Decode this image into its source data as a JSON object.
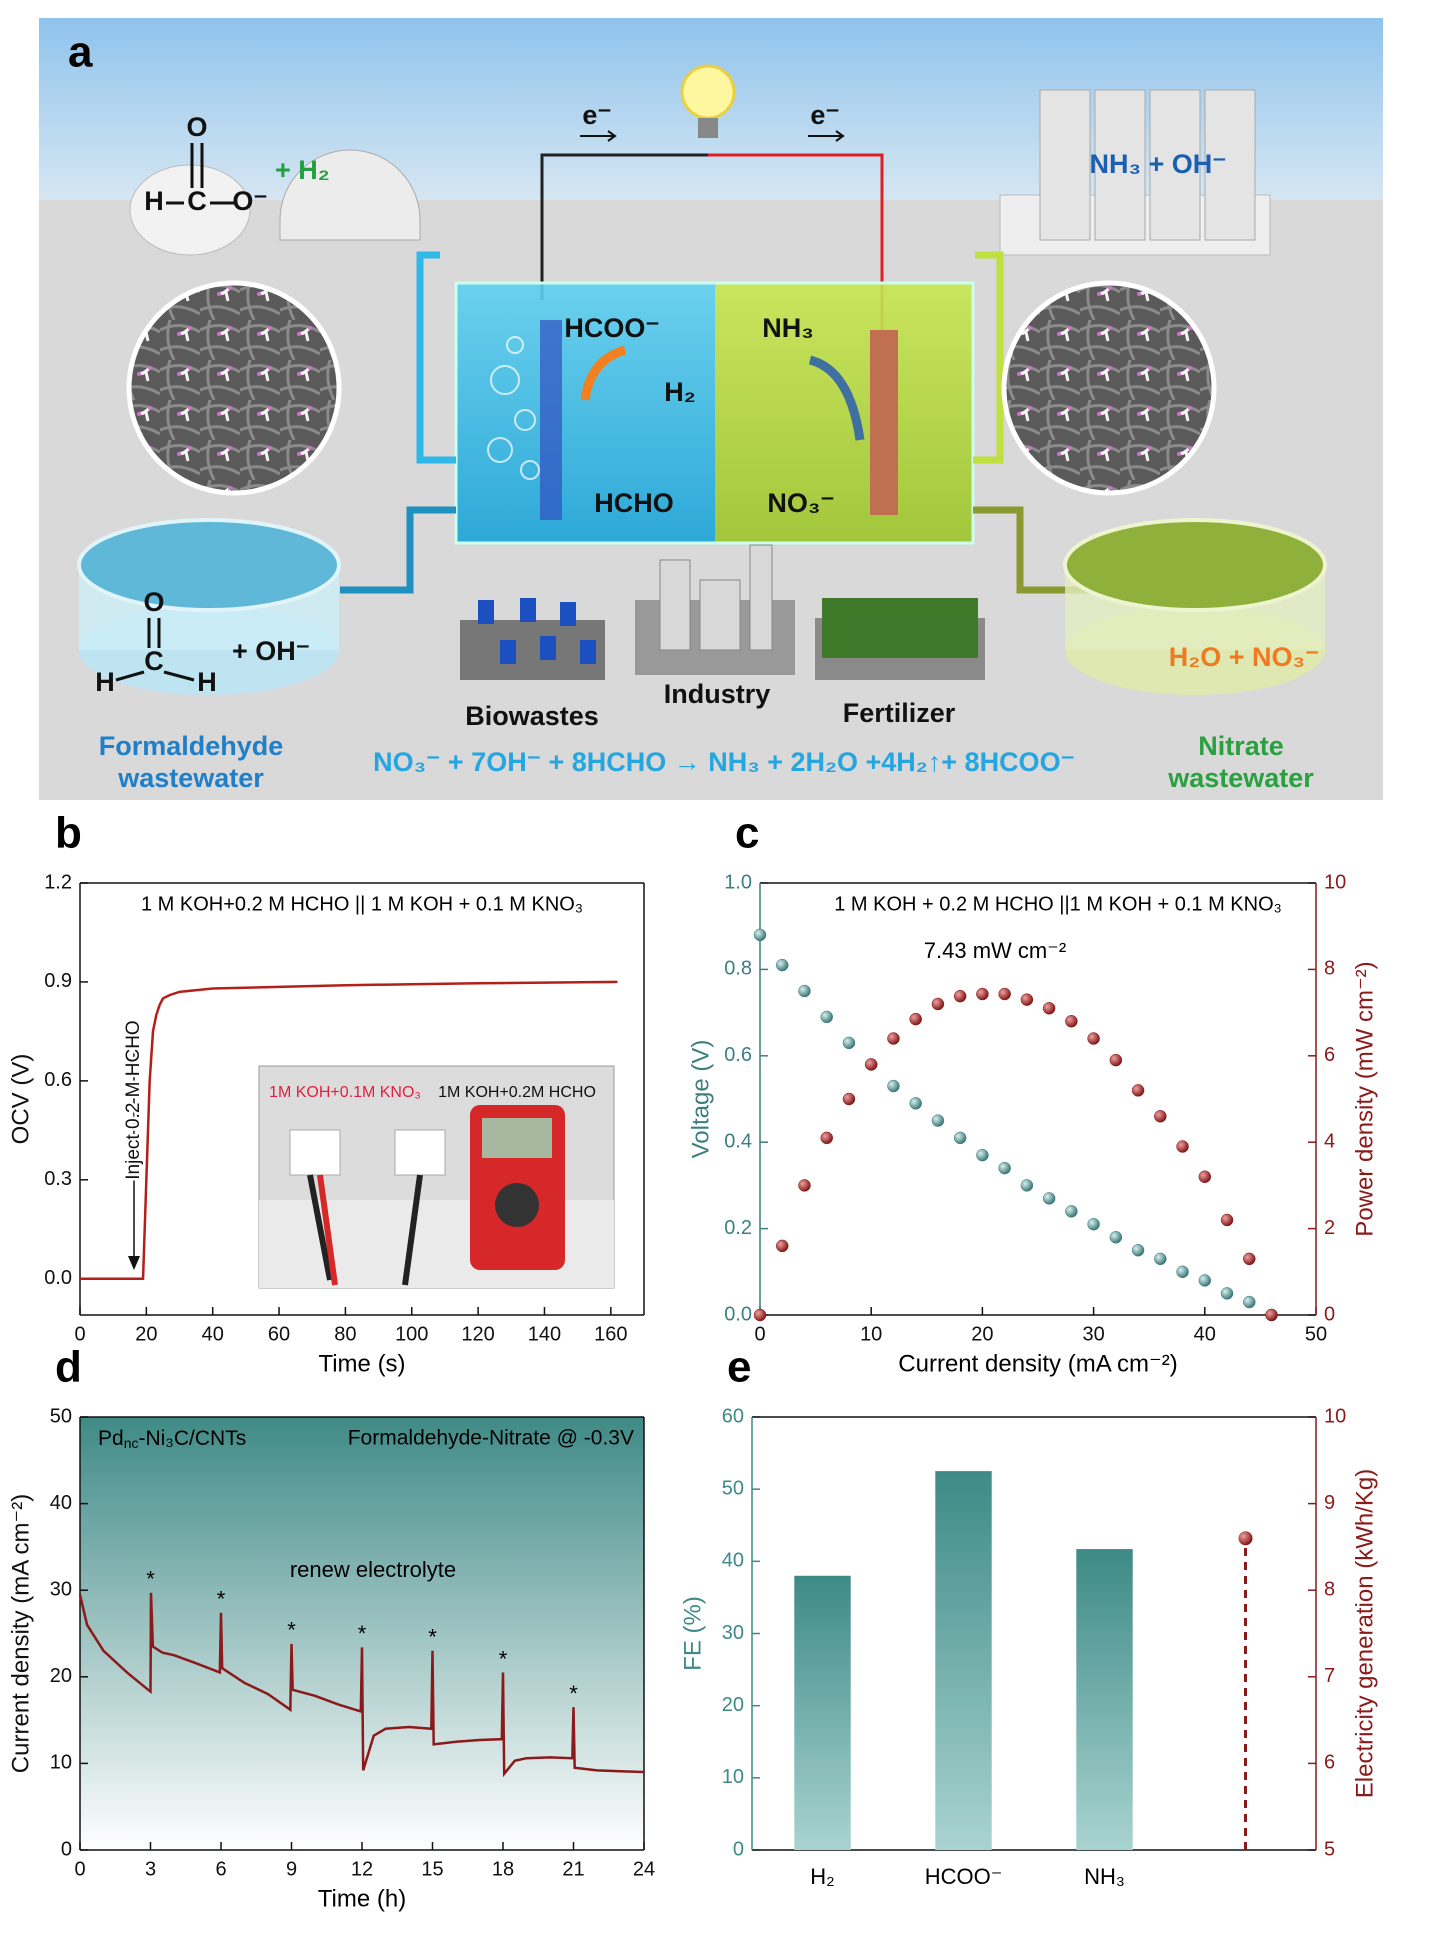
{
  "panel_a": {
    "label": "a",
    "electrons": [
      "e⁻",
      "e⁻"
    ],
    "formate_atoms": [
      "O",
      "H",
      "C",
      "O⁻"
    ],
    "hydrogen": "+ H₂",
    "ammonia_product": "NH₃ + OH⁻",
    "anode_species": [
      "HCOO⁻",
      "H₂",
      "HCHO"
    ],
    "cathode_species": [
      "NH₃",
      "NO₃⁻"
    ],
    "formaldehyde_atoms": [
      "O",
      "C",
      "H",
      "H"
    ],
    "hydroxide": "+ OH⁻",
    "nitrate_feed": "H₂O + NO₃⁻",
    "sources": [
      "Biowastes",
      "Industry",
      "Fertilizer"
    ],
    "left_tank": [
      "Formaldehyde",
      "wastewater"
    ],
    "right_tank": [
      "Nitrate",
      "wastewater"
    ],
    "equation": "NO₃⁻ + 7OH⁻ + 8HCHO → NH₃ + 2H₂O +4H₂↑+ 8HCOO⁻"
  },
  "chart_data": [
    {
      "type": "line",
      "label": "b",
      "subtitle": "1 M KOH+0.2 M HCHO || 1 M KOH + 0.1 M KNO₃",
      "x_label": "Time (s)",
      "y_label": "OCV (V)",
      "annotation": "Inject 0.2 M HCHO",
      "inset_labels": [
        "1M KOH+0.1M KNO₃",
        "1M KOH+0.2M HCHO"
      ],
      "x": [
        0,
        10,
        19,
        20,
        21,
        22,
        23,
        24,
        25,
        27,
        30,
        40,
        60,
        80,
        100,
        120,
        140,
        162
      ],
      "values": [
        0,
        0,
        0,
        0.3,
        0.6,
        0.75,
        0.8,
        0.83,
        0.85,
        0.86,
        0.87,
        0.88,
        0.885,
        0.89,
        0.893,
        0.896,
        0.898,
        0.9
      ],
      "color": "#b3201a",
      "xlim": [
        0,
        170
      ],
      "ylim": [
        -0.11,
        1.2
      ],
      "xticks": [
        0,
        20,
        40,
        60,
        80,
        100,
        120,
        140,
        160
      ],
      "yticks": [
        {
          "value": 0,
          "label": "0.0"
        },
        0.3,
        0.6,
        0.9,
        1.2
      ]
    },
    {
      "type": "scatter",
      "label": "c",
      "subtitle": "1 M KOH + 0.2 M HCHO ||1 M KOH + 0.1 M KNO₃",
      "annotation": "7.43 mW cm⁻²",
      "x_label": "Current density (mA cm⁻²)",
      "y_label": "Voltage (V)",
      "y2_label": "Power density (mW cm⁻²)",
      "x": [
        0,
        2,
        4,
        6,
        8,
        10,
        12,
        14,
        16,
        18,
        20,
        22,
        24,
        26,
        28,
        30,
        32,
        34,
        36,
        38,
        40,
        42,
        44,
        46
      ],
      "series": [
        {
          "color": "#3d7f7f",
          "values": [
            0.88,
            0.81,
            0.75,
            0.69,
            0.63,
            0.58,
            0.53,
            0.49,
            0.45,
            0.41,
            0.37,
            0.34,
            0.3,
            0.27,
            0.24,
            0.21,
            0.18,
            0.15,
            0.13,
            0.1,
            0.08,
            0.05,
            0.03,
            0
          ]
        },
        {
          "color": "#8b1a1a",
          "axis": "y2",
          "values": [
            0,
            1.6,
            3.0,
            4.1,
            5.0,
            5.8,
            6.4,
            6.85,
            7.2,
            7.38,
            7.43,
            7.43,
            7.3,
            7.1,
            6.8,
            6.4,
            5.9,
            5.2,
            4.6,
            3.9,
            3.2,
            2.2,
            1.3,
            0
          ]
        }
      ],
      "xlim": [
        0,
        50
      ],
      "ylim": [
        0,
        1
      ],
      "y2lim": [
        0,
        10
      ],
      "xticks": [
        0,
        10,
        20,
        30,
        40,
        50
      ],
      "yticks": [
        {
          "value": 0,
          "label": "0.0"
        },
        0.2,
        0.4,
        0.6,
        0.8,
        {
          "value": 1,
          "label": "1.0"
        }
      ],
      "y2ticks": [
        0,
        2,
        4,
        6,
        8,
        10
      ]
    },
    {
      "type": "line",
      "label": "d",
      "catalyst": [
        "Pd",
        "nc",
        "-Ni₃C/CNTs"
      ],
      "subtitle": "Formaldehyde-Nitrate @ -0.3V",
      "annotation": "renew electrolyte",
      "renewal_marker": "*",
      "renewals": [
        3,
        6,
        9,
        12,
        15,
        18,
        21
      ],
      "x_label": "Time (h)",
      "y_label": "Current density (mA cm⁻²)",
      "x": [
        0,
        0.3,
        1,
        2,
        2.9,
        3.0,
        3.02,
        3.1,
        3.5,
        4,
        5,
        5.95,
        6.0,
        6.05,
        7,
        8,
        8.95,
        9.0,
        9.05,
        10,
        11,
        11.95,
        12.0,
        12.05,
        12.5,
        13,
        14,
        14.95,
        15.0,
        15.05,
        16,
        17,
        17.95,
        18.0,
        18.05,
        18.5,
        19,
        20,
        20.95,
        21.0,
        21.05,
        22,
        23,
        24
      ],
      "values": [
        29.5,
        26,
        23,
        20.5,
        18.5,
        18.3,
        29.7,
        23.5,
        22.8,
        22.5,
        21.5,
        20.5,
        27.4,
        21,
        19.3,
        18,
        16.2,
        23.8,
        18.5,
        17.8,
        16.8,
        16.0,
        23.4,
        9.2,
        13.2,
        14,
        14.2,
        14,
        23,
        12.2,
        12.5,
        12.7,
        12.8,
        20.5,
        8.8,
        10.3,
        10.6,
        10.7,
        10.6,
        16.5,
        9.5,
        9.2,
        9.1,
        9.0
      ],
      "color": "#8b1a1a",
      "plot_background": [
        "#3f8a86",
        "#ffffff"
      ],
      "xlim": [
        0,
        24
      ],
      "ylim": [
        0,
        50
      ],
      "xticks": [
        0,
        3,
        6,
        9,
        12,
        15,
        18,
        21,
        24
      ],
      "yticks": [
        0,
        10,
        20,
        30,
        40,
        50
      ]
    },
    {
      "type": "bar",
      "label": "e",
      "y_label": "FE (%)",
      "y2_label": "Electricity generation (kWh/Kg)",
      "categories": [
        "H₂",
        "HCOO⁻",
        "NH₃",
        null
      ],
      "series": [
        {
          "color": "#3d8a86",
          "values": [
            38,
            52.5,
            41.7,
            null
          ]
        },
        {
          "color": "#8b1a1a",
          "axis": "y2",
          "values": [
            null,
            null,
            null,
            8.6
          ]
        }
      ],
      "ylim": [
        0,
        60
      ],
      "y2lim": [
        5,
        10
      ],
      "yticks": [
        0,
        10,
        20,
        30,
        40,
        50,
        60
      ],
      "y2ticks": [
        5,
        6,
        7,
        8,
        9,
        10
      ]
    }
  ]
}
